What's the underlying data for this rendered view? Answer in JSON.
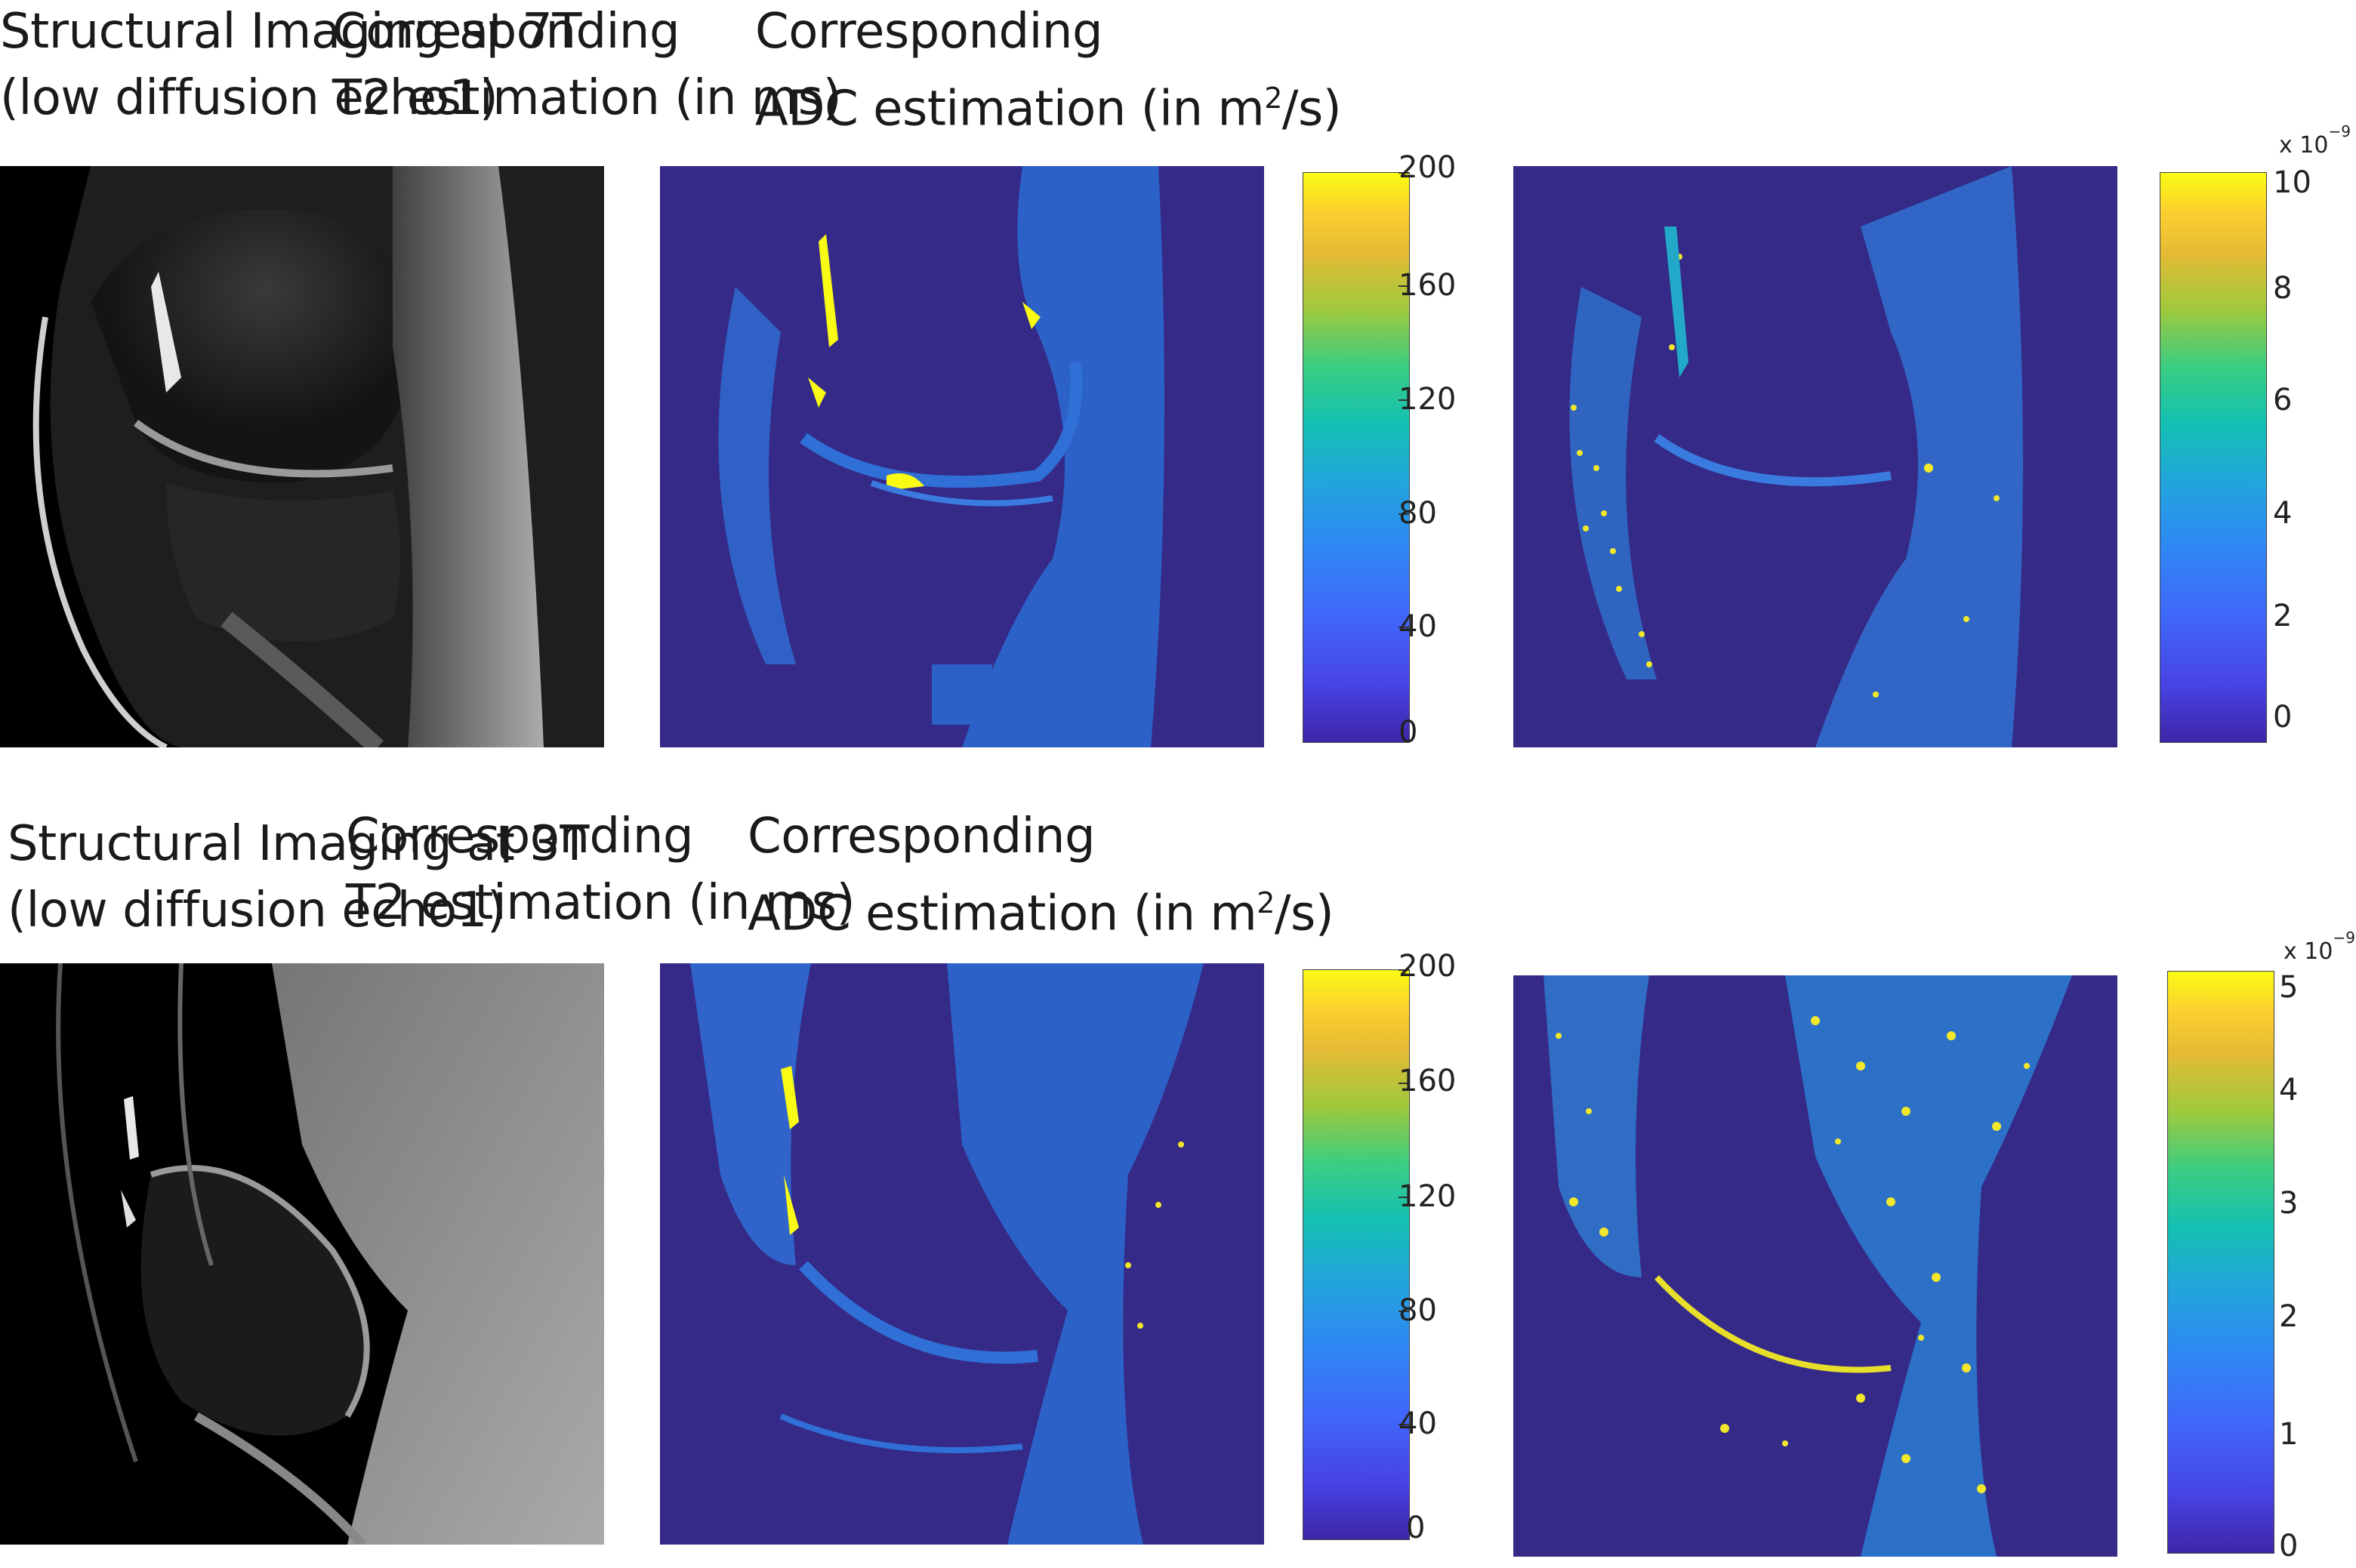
{
  "figure": {
    "row1": {
      "structural": {
        "line1": "Structural Imaging at 7T",
        "line2": "(low diffusion echo1)"
      },
      "t2": {
        "line1": "Corresponding",
        "line2": "T2 estimation (in ms)"
      },
      "adc": {
        "line1": "Corresponding",
        "line2_prefix": "ADC estimation (in m",
        "line2_sup": "2",
        "line2_suffix": "/s)"
      },
      "t2_colorbar": {
        "ticks": [
          "200",
          "160",
          "120",
          "80",
          "40",
          "0"
        ]
      },
      "adc_colorbar": {
        "exponent_base": "x 10",
        "exponent_power": "−9",
        "ticks": [
          "10",
          "8",
          "6",
          "4",
          "2",
          "0"
        ]
      }
    },
    "row2": {
      "structural": {
        "line1": "Structural Imaging at 3T",
        "line2": "(low diffusion echo1)"
      },
      "t2": {
        "line1": "Corresponding",
        "line2": "T2 estimation (in ms)"
      },
      "adc": {
        "line1": "Corresponding",
        "line2_prefix": "ADC estimation (in m",
        "line2_sup": "2",
        "line2_suffix": "/s)"
      },
      "t2_colorbar": {
        "ticks": [
          "200",
          "160",
          "120",
          "80",
          "40",
          "0"
        ]
      },
      "adc_colorbar": {
        "exponent_base": "x 10",
        "exponent_power": "−9",
        "ticks": [
          "5",
          "4",
          "3",
          "2",
          "1",
          "0"
        ]
      }
    }
  },
  "colors": {
    "map_background": "#352a87",
    "map_tissue": "#2f6fd6",
    "map_high": "#f9fb14",
    "mri_background": "#000000"
  }
}
